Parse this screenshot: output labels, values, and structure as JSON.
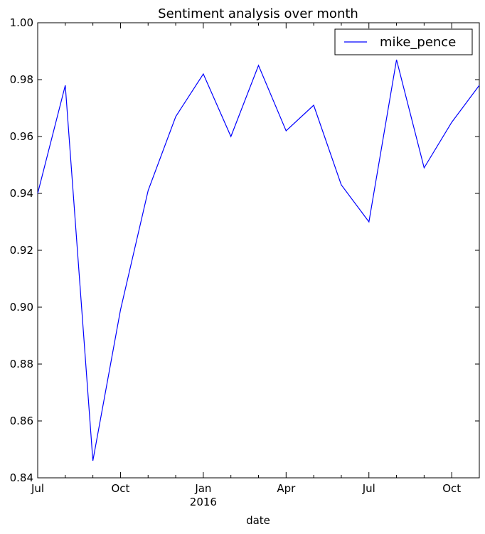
{
  "chart_data": {
    "type": "line",
    "title": "Sentiment analysis over month",
    "xlabel": "date",
    "ylabel": "",
    "ylim": [
      0.84,
      1.0
    ],
    "yticks": [
      0.84,
      0.86,
      0.88,
      0.9,
      0.92,
      0.94,
      0.96,
      0.98,
      1.0
    ],
    "ytick_labels": [
      "0.84",
      "0.86",
      "0.88",
      "0.90",
      "0.92",
      "0.94",
      "0.96",
      "0.98",
      "1.00"
    ],
    "xlim": [
      "2015-07",
      "2016-11"
    ],
    "xticks": [
      {
        "month": "2015-07",
        "label": "Jul",
        "sublabel": ""
      },
      {
        "month": "2015-10",
        "label": "Oct",
        "sublabel": ""
      },
      {
        "month": "2016-01",
        "label": "Jan",
        "sublabel": "2016"
      },
      {
        "month": "2016-04",
        "label": "Apr",
        "sublabel": ""
      },
      {
        "month": "2016-07",
        "label": "Jul",
        "sublabel": ""
      },
      {
        "month": "2016-10",
        "label": "Oct",
        "sublabel": ""
      }
    ],
    "minor_ticks": [
      "2015-08",
      "2015-09",
      "2015-11",
      "2015-12",
      "2016-02",
      "2016-03",
      "2016-05",
      "2016-06",
      "2016-08",
      "2016-09"
    ],
    "x": [
      "2015-07",
      "2015-08",
      "2015-09",
      "2015-10",
      "2015-11",
      "2015-12",
      "2016-01",
      "2016-02",
      "2016-03",
      "2016-04",
      "2016-05",
      "2016-06",
      "2016-07",
      "2016-08",
      "2016-09",
      "2016-10",
      "2016-11"
    ],
    "series": [
      {
        "name": "mike_pence",
        "color": "#0000ff",
        "values": [
          0.94,
          0.978,
          0.846,
          0.899,
          0.941,
          0.967,
          0.982,
          0.96,
          0.985,
          0.962,
          0.971,
          0.943,
          0.93,
          0.987,
          0.949,
          0.965,
          0.978
        ]
      }
    ],
    "legend_position": "top-right",
    "grid": false
  }
}
